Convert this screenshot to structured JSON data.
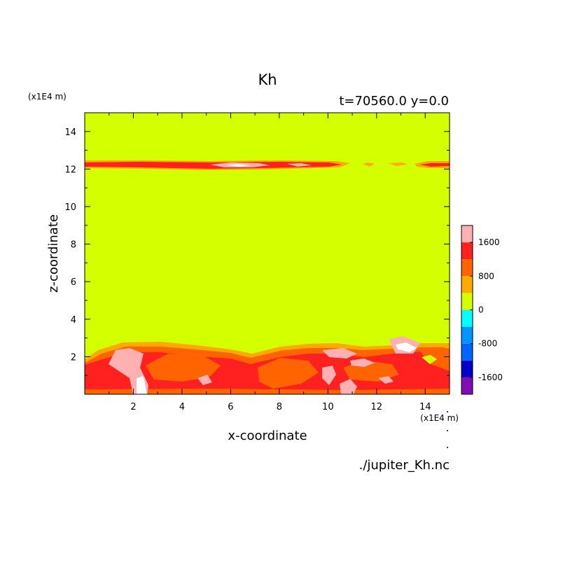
{
  "chart_data": {
    "type": "heatmap",
    "title": "Kh",
    "subtitle": "t=70560.0 y=0.0",
    "xlabel": "x-coordinate",
    "ylabel": "z-coordinate",
    "x_unit": "(x1E4 m)",
    "y_unit": "(x1E4 m)",
    "xlim": [
      0,
      15
    ],
    "ylim": [
      0,
      15
    ],
    "x_ticks": [
      "2",
      "4",
      "6",
      "8",
      "10",
      "12",
      "14"
    ],
    "y_ticks": [
      "2",
      "4",
      "6",
      "8",
      "10",
      "12",
      "14"
    ],
    "x_tick_values": [
      2,
      4,
      6,
      8,
      10,
      12,
      14
    ],
    "y_tick_values": [
      2,
      4,
      6,
      8,
      10,
      12,
      14
    ],
    "colorbar": {
      "tick_labels": [
        "1600",
        "800",
        "0",
        "-800",
        "-1600"
      ],
      "tick_values": [
        1600,
        800,
        0,
        -800,
        -1600
      ],
      "levels": [
        -2000,
        -1600,
        -1200,
        -800,
        -400,
        0,
        400,
        800,
        1200,
        1600,
        2000
      ],
      "colors": [
        "#7f0fb2",
        "#0000c8",
        "#0064ff",
        "#0096ff",
        "#00ffff",
        "#d4ff00",
        "#ffaa00",
        "#ff6400",
        "#ff2020",
        "#ffb0b0"
      ]
    },
    "field": {
      "background_range": "0 to 400",
      "upper_layer_z": [
        11.9,
        12.4
      ],
      "lower_layer_top_z": 2.8,
      "description": "Kh field: mostly 0-400; turbulent layer near z=12; active mixing zone below z≈2.8 with values 800-2000+"
    },
    "source_file": "./jupiter_Kh.nc"
  },
  "colors": {
    "background_level": "#d4ff00",
    "level_400_800": "#ffaa00",
    "level_800_1200": "#ff6400",
    "level_1200_1600": "#ff2020",
    "level_1600_2000": "#ffb0b0",
    "level_above": "#ffffff"
  }
}
